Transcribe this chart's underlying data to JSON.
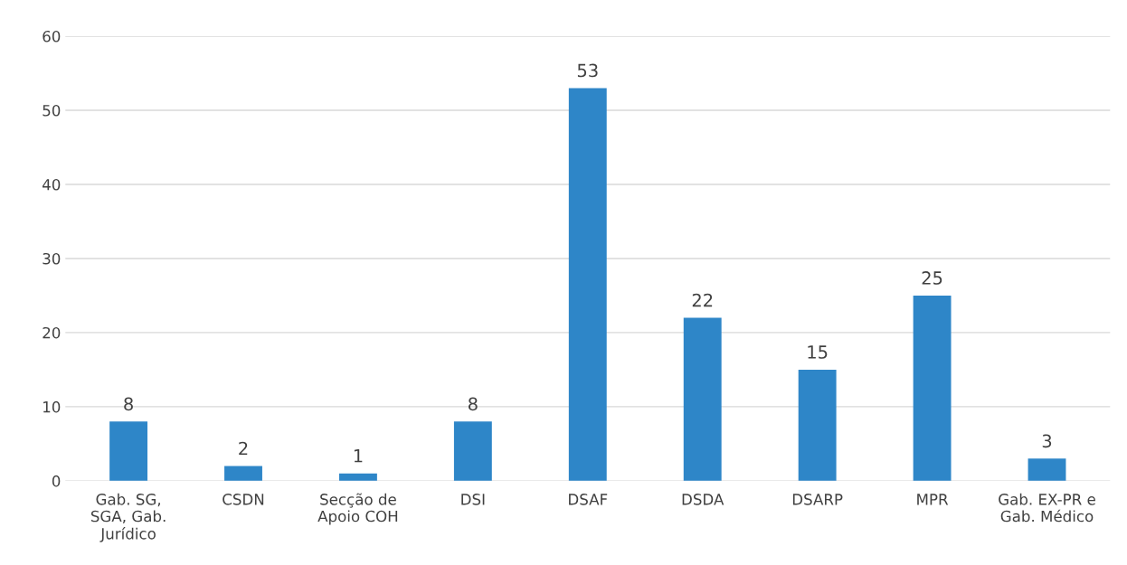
{
  "chart_data": {
    "type": "bar",
    "categories": [
      "Gab. SG,\nSGA, Gab.\nJurídico",
      "CSDN",
      "Secção de\nApoio COH",
      "DSI",
      "DSAF",
      "DSDA",
      "DSARP",
      "MPR",
      "Gab. EX-PR e\nGab. Médico"
    ],
    "values": [
      8,
      2,
      1,
      8,
      53,
      22,
      15,
      25,
      3
    ],
    "color": "#2e86c8",
    "ylim": [
      0,
      60
    ],
    "yticks": [
      0,
      10,
      20,
      30,
      40,
      50,
      60
    ],
    "grid": "y",
    "data_labels": true
  }
}
